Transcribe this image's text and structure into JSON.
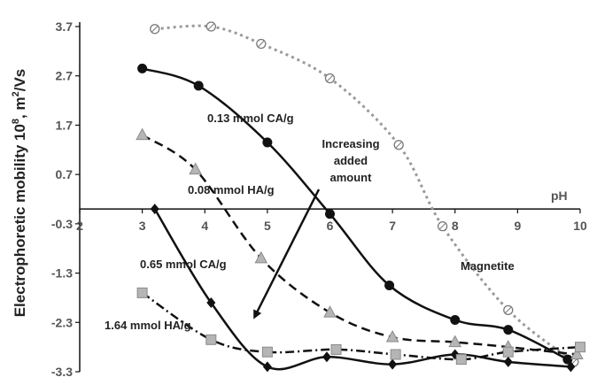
{
  "chart_data": {
    "type": "line",
    "title": "",
    "xlabel": "pH",
    "ylabel": "Electrophoretic mobility 10",
    "ylabel_sup1": "8",
    "ylabel_mid": ", m",
    "ylabel_sup2": "2",
    "ylabel_end": "/Vs",
    "xlim": [
      2,
      10
    ],
    "ylim": [
      -3.3,
      3.7
    ],
    "x_axis_crossing_y": 0,
    "grid": false,
    "x_ticks": [
      2,
      3,
      4,
      5,
      6,
      7,
      8,
      9,
      10
    ],
    "y_ticks": [
      3.7,
      2.7,
      1.7,
      0.7,
      -0.3,
      -1.3,
      -2.3,
      -3.3
    ],
    "series": [
      {
        "name": "Magnetite",
        "color": "#9a9a9a",
        "line_style": "dotted",
        "marker": "circle-open",
        "points": [
          [
            3.2,
            3.65
          ],
          [
            4.1,
            3.7
          ],
          [
            4.9,
            3.35
          ],
          [
            6.0,
            2.65
          ],
          [
            7.1,
            1.3
          ],
          [
            7.8,
            -0.35
          ],
          [
            8.85,
            -2.05
          ],
          [
            9.9,
            -3.1
          ]
        ]
      },
      {
        "name": "0.13 mmol CA/g",
        "color": "#111111",
        "line_style": "solid",
        "marker": "circle-filled",
        "points": [
          [
            3.0,
            2.85
          ],
          [
            3.9,
            2.5
          ],
          [
            5.0,
            1.35
          ],
          [
            6.0,
            -0.1
          ],
          [
            6.95,
            -1.55
          ],
          [
            8.0,
            -2.25
          ],
          [
            8.85,
            -2.45
          ],
          [
            9.8,
            -3.05
          ]
        ]
      },
      {
        "name": "0.08 mmol HA/g",
        "color": "#111111",
        "line_style": "dashed",
        "marker": "triangle-gray",
        "points": [
          [
            3.0,
            1.5
          ],
          [
            3.85,
            0.8
          ],
          [
            4.9,
            -1.0
          ],
          [
            6.0,
            -2.1
          ],
          [
            7.0,
            -2.6
          ],
          [
            8.0,
            -2.7
          ],
          [
            8.85,
            -2.8
          ],
          [
            9.95,
            -2.95
          ]
        ]
      },
      {
        "name": "0.65 mmol CA/g",
        "color": "#111111",
        "line_style": "solid",
        "marker": "diamond-filled",
        "points": [
          [
            3.2,
            0.0
          ],
          [
            4.1,
            -1.9
          ],
          [
            5.0,
            -3.2
          ],
          [
            5.95,
            -3.0
          ],
          [
            7.0,
            -3.15
          ],
          [
            8.0,
            -2.95
          ],
          [
            8.85,
            -3.1
          ],
          [
            9.85,
            -3.2
          ]
        ]
      },
      {
        "name": "1.64 mmol HA/g",
        "color": "#111111",
        "line_style": "dash-dot",
        "marker": "square-gray",
        "points": [
          [
            3.0,
            -1.7
          ],
          [
            4.1,
            -2.65
          ],
          [
            5.0,
            -2.9
          ],
          [
            6.1,
            -2.85
          ],
          [
            7.05,
            -2.95
          ],
          [
            8.1,
            -3.05
          ],
          [
            8.85,
            -2.9
          ],
          [
            10.0,
            -2.8
          ]
        ]
      }
    ],
    "annotations": {
      "ca013": "0.13 mmol CA/g",
      "ha008": "0.08 mmol HA/g",
      "ca065": "0.65 mmol CA/g",
      "ha164": "1.64 mmol HA/g",
      "magnetite": "Magnetite",
      "arrow_line1": "Increasing",
      "arrow_line2": "added",
      "arrow_line3": "amount"
    }
  }
}
